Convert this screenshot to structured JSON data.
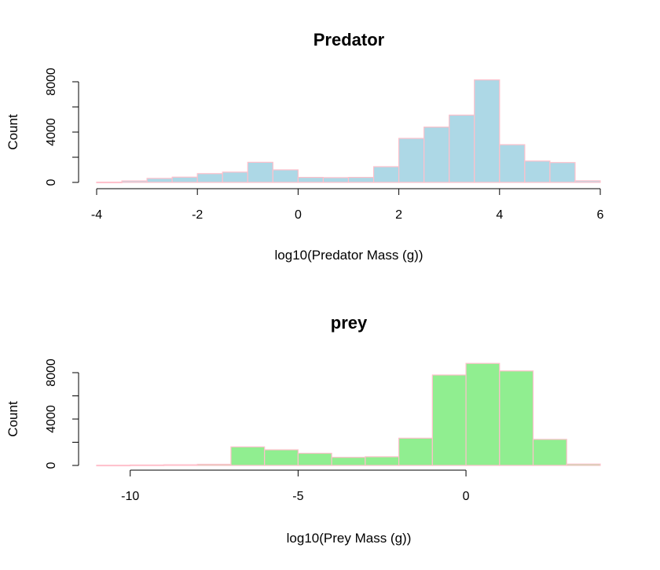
{
  "chart_data": [
    {
      "type": "bar",
      "title": "Predator",
      "xlabel": "log10(Predator Mass (g))",
      "ylabel": "Count",
      "xlim": [
        -4,
        6
      ],
      "ylim": [
        0,
        8000
      ],
      "x_ticks": [
        "-4",
        "-2",
        "0",
        "2",
        "4",
        "6"
      ],
      "y_ticks": [
        "0",
        "4000",
        "8000"
      ],
      "bin_edges": [
        -4,
        -3.5,
        -3,
        -2.5,
        -2,
        -1.5,
        -1,
        -0.5,
        0,
        0.5,
        1,
        1.5,
        2,
        2.5,
        3,
        3.5,
        4,
        4.5,
        5,
        5.5,
        6
      ],
      "values": [
        20,
        120,
        320,
        420,
        700,
        820,
        1600,
        1000,
        400,
        380,
        400,
        1250,
        3500,
        4400,
        5350,
        8150,
        3000,
        1700,
        1580,
        130
      ],
      "bar_fill": "#add8e6",
      "bar_border": "#ffc0cb",
      "grid": false
    },
    {
      "type": "bar",
      "title": "prey",
      "xlabel": "log10(Prey Mass (g))",
      "ylabel": "Count",
      "xlim": [
        -11,
        4
      ],
      "ylim": [
        0,
        8000
      ],
      "x_ticks": [
        "-10",
        "-5",
        "0"
      ],
      "y_ticks": [
        "0",
        "4000",
        "8000"
      ],
      "bin_edges": [
        -11,
        -10,
        -9,
        -8,
        -7,
        -6,
        -5,
        -4,
        -3,
        -2,
        -1,
        0,
        1,
        2,
        3,
        4
      ],
      "values": [
        20,
        40,
        60,
        100,
        1600,
        1350,
        1050,
        700,
        750,
        2350,
        7800,
        8800,
        8150,
        2250,
        120
      ],
      "bar_fill": "#90ee90",
      "bar_border": "#ffc0cb",
      "grid": false
    }
  ]
}
